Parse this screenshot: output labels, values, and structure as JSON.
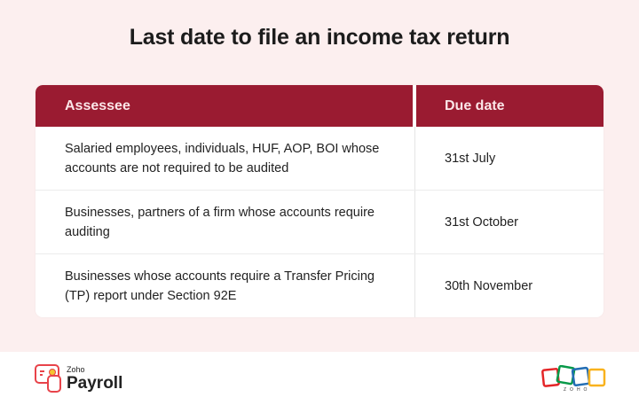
{
  "title": "Last date to file an income tax return",
  "table": {
    "headers": [
      "Assessee",
      "Due date"
    ],
    "rows": [
      {
        "assessee": "Salaried employees, individuals, HUF, AOP, BOI whose accounts are not required to be audited",
        "due_date": "31st July"
      },
      {
        "assessee": "Businesses, partners of a firm whose accounts require auditing",
        "due_date": "31st October"
      },
      {
        "assessee": "Businesses whose accounts require a Transfer Pricing (TP) report under Section 92E",
        "due_date": "30th November"
      }
    ]
  },
  "footer": {
    "product_logo": {
      "brand": "Zoho",
      "product": "Payroll"
    },
    "company_logo": "ZOHO"
  },
  "colors": {
    "header": "#9a1b31",
    "background": "#fcefef",
    "accent": "#e8434a"
  }
}
